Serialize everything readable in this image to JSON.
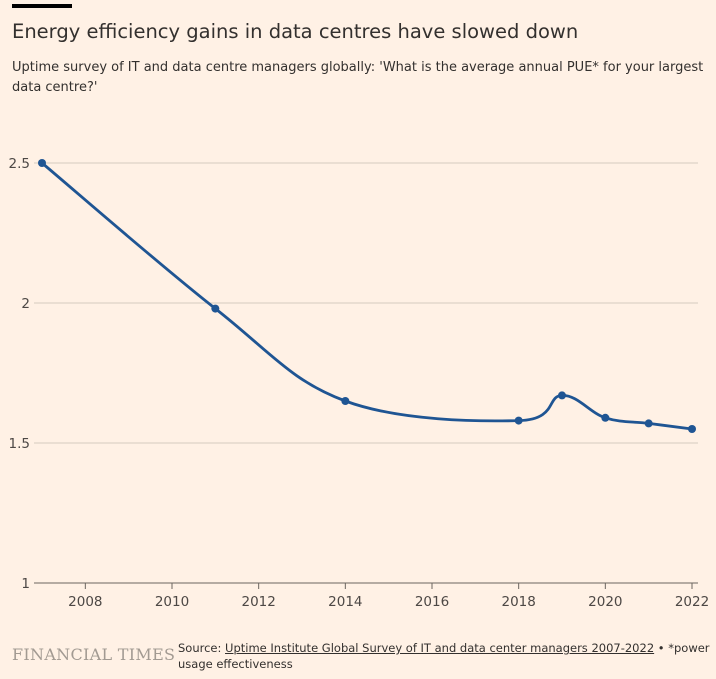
{
  "header": {
    "title": "Energy efficiency gains in data centres have slowed down",
    "subtitle": "Uptime survey of IT and data centre managers globally: 'What is the average annual PUE* for your largest data centre?'"
  },
  "footer": {
    "brand": "FINANCIAL TIMES",
    "source_prefix": "Source: ",
    "source_link": "Uptime Institute Global Survey of IT and data center managers 2007-2022",
    "note": " • *power usage effectiveness"
  },
  "colors": {
    "background": "#fff1e5",
    "line": "#1f5593",
    "grid": "#d6cbc0"
  },
  "chart_data": {
    "type": "line",
    "title": "Energy efficiency gains in data centres have slowed down",
    "xlabel": "",
    "ylabel": "",
    "xlim": [
      2007,
      2022
    ],
    "ylim": [
      1,
      2.5
    ],
    "x_ticks": [
      2008,
      2010,
      2012,
      2014,
      2016,
      2018,
      2020,
      2022
    ],
    "y_ticks": [
      1,
      1.5,
      2,
      2.5
    ],
    "y_tick_labels": [
      "1",
      "1.5",
      "2",
      "2.5"
    ],
    "grid": true,
    "series": [
      {
        "x": [
          2007,
          2011,
          2014,
          2018,
          2019,
          2020,
          2021,
          2022
        ],
        "values": [
          2.5,
          1.98,
          1.65,
          1.58,
          1.67,
          1.59,
          1.57,
          1.55
        ]
      }
    ]
  }
}
